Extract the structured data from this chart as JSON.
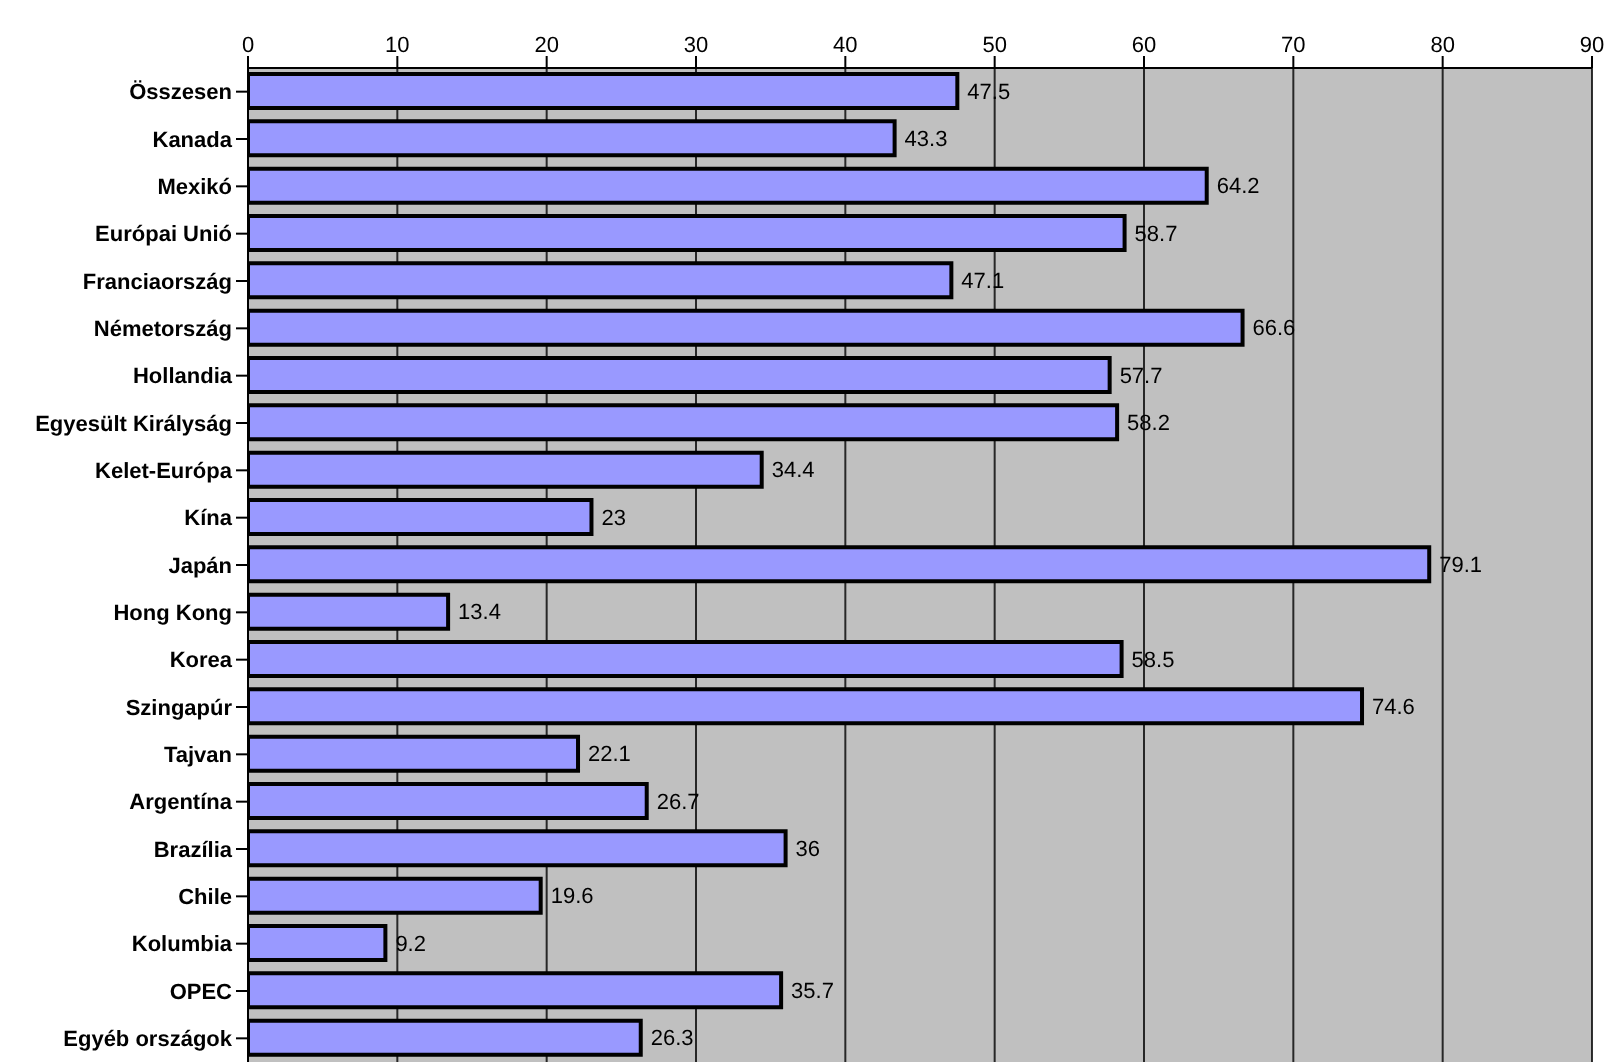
{
  "chart_data": {
    "type": "bar",
    "orientation": "horizontal",
    "categories": [
      "Összesen",
      "Kanada",
      "Mexikó",
      "Európai Unió",
      "Franciaország",
      "Németország",
      "Hollandia",
      "Egyesült Királyság",
      "Kelet-Európa",
      "Kína",
      "Japán",
      "Hong Kong",
      "Korea",
      "Szingapúr",
      "Tajvan",
      "Argentína",
      "Brazília",
      "Chile",
      "Kolumbia",
      "OPEC",
      "Egyéb országok"
    ],
    "values": [
      47.5,
      43.3,
      64.2,
      58.7,
      47.1,
      66.6,
      57.7,
      58.2,
      34.4,
      23,
      79.1,
      13.4,
      58.5,
      74.6,
      22.1,
      26.7,
      36,
      19.6,
      9.2,
      35.7,
      26.3
    ],
    "color": "#9999ff",
    "xlim": [
      0,
      90
    ],
    "xticks": [
      0,
      10,
      20,
      30,
      40,
      50,
      60,
      70,
      80,
      90
    ],
    "grid": "x",
    "data_labels": true
  }
}
